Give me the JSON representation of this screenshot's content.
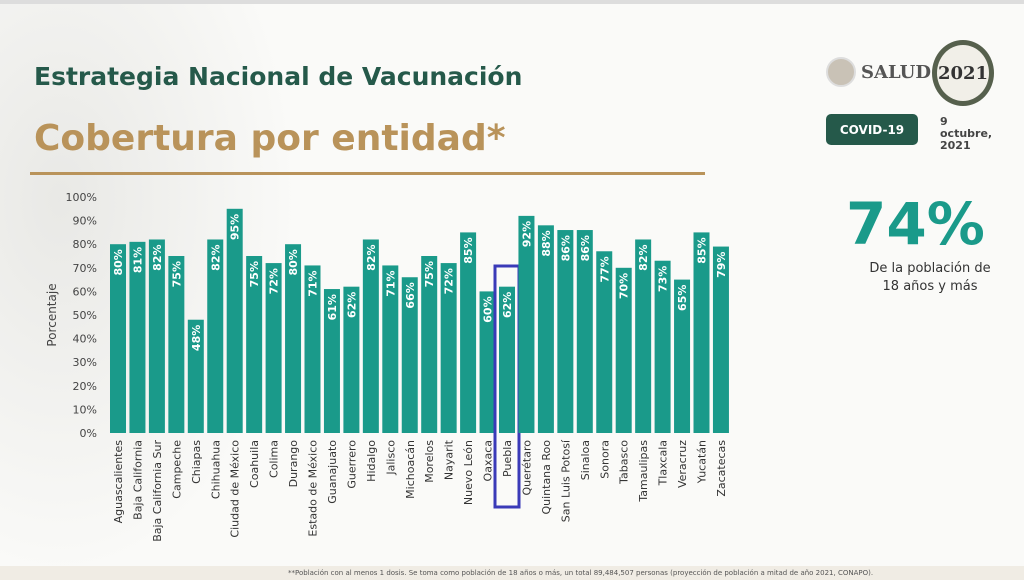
{
  "header": {
    "title": "Estrategia Nacional de Vacunación",
    "subtitle": "Cobertura por entidad*"
  },
  "logos": {
    "salud": "SALUD",
    "year_logo": "2021",
    "covid_badge": "COVID-19",
    "date": "9 octubre, 2021"
  },
  "kpi": {
    "value": "74%",
    "caption": "De la población de 18 años y más"
  },
  "footnote": "**Población con al menos 1 dosis. Se toma como población de 18 años o más, un total 89,484,507 personas (proyección de población a mitad de año 2021, CONAPO).",
  "colors": {
    "bar": "#1a9a8a",
    "highlight": "#3a3ab8",
    "title": "#25594a",
    "subtitle": "#b9935a"
  },
  "chart_data": {
    "type": "bar",
    "ylabel": "Porcentaje",
    "xlabel": "",
    "ylim": [
      0,
      100
    ],
    "yticks": [
      "0%",
      "10%",
      "20%",
      "30%",
      "40%",
      "50%",
      "60%",
      "70%",
      "80%",
      "90%",
      "100%"
    ],
    "grid": false,
    "highlighted": "Puebla",
    "categories": [
      "Aguascalientes",
      "Baja California",
      "Baja California Sur",
      "Campeche",
      "Chiapas",
      "Chihuahua",
      "Ciudad de México",
      "Coahuila",
      "Colima",
      "Durango",
      "Estado de México",
      "Guanajuato",
      "Guerrero",
      "Hidalgo",
      "Jalisco",
      "Michoacán",
      "Morelos",
      "Nayarit",
      "Nuevo León",
      "Oaxaca",
      "Puebla",
      "Querétaro",
      "Quintana Roo",
      "San Luis Potosí",
      "Sinaloa",
      "Sonora",
      "Tabasco",
      "Tamaulipas",
      "Tlaxcala",
      "Veracruz",
      "Yucatán",
      "Zacatecas"
    ],
    "values": [
      80,
      81,
      82,
      75,
      48,
      82,
      95,
      75,
      72,
      80,
      71,
      61,
      62,
      82,
      71,
      66,
      75,
      72,
      85,
      60,
      62,
      92,
      88,
      86,
      86,
      77,
      70,
      82,
      73,
      65,
      85,
      79
    ]
  }
}
